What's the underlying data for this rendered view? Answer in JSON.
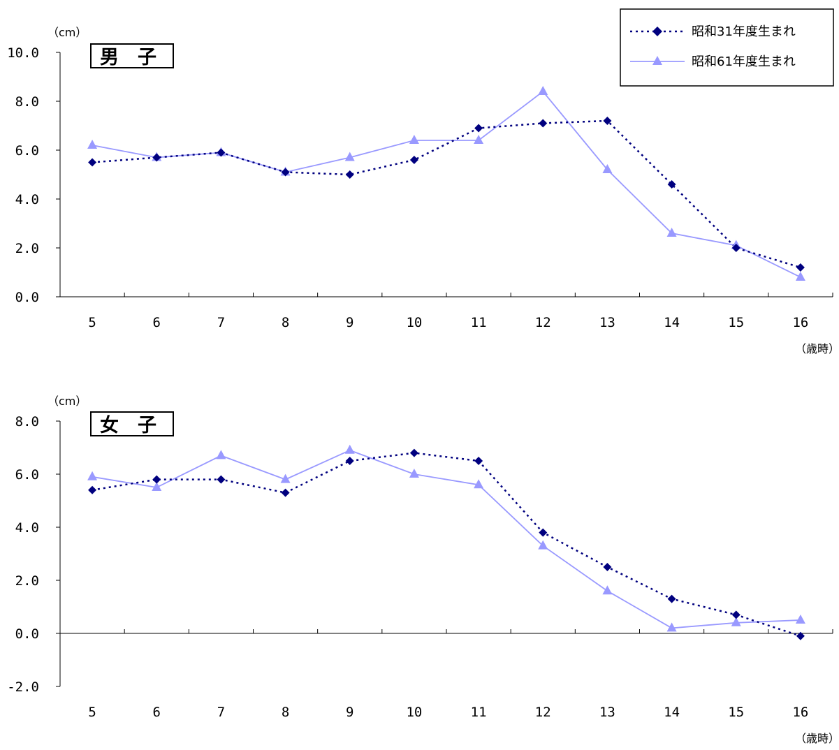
{
  "chart_data": [
    {
      "type": "line",
      "panel_label": "男　子",
      "y_unit": "（cm）",
      "x_unit": "（歳時）",
      "categories": [
        "5",
        "6",
        "7",
        "8",
        "9",
        "10",
        "11",
        "12",
        "13",
        "14",
        "15",
        "16"
      ],
      "ylim": [
        0,
        10
      ],
      "y_ticks": [
        "0.0",
        "2.0",
        "4.0",
        "6.0",
        "8.0",
        "10.0"
      ],
      "series": [
        {
          "name": "昭和31年度生まれ",
          "values": [
            5.5,
            5.7,
            5.9,
            5.1,
            5.0,
            5.6,
            6.9,
            7.1,
            7.2,
            4.6,
            2.0,
            1.2
          ]
        },
        {
          "name": "昭和61年度生まれ",
          "values": [
            6.2,
            5.7,
            5.9,
            5.1,
            5.7,
            6.4,
            6.4,
            8.4,
            5.2,
            2.6,
            2.1,
            0.8
          ]
        }
      ],
      "grid": false,
      "legend": "top-right"
    },
    {
      "type": "line",
      "panel_label": "女　子",
      "y_unit": "（cm）",
      "x_unit": "（歳時）",
      "categories": [
        "5",
        "6",
        "7",
        "8",
        "9",
        "10",
        "11",
        "12",
        "13",
        "14",
        "15",
        "16"
      ],
      "ylim": [
        -2,
        8
      ],
      "y_ticks": [
        "-2.0",
        "0.0",
        "2.0",
        "4.0",
        "6.0",
        "8.0"
      ],
      "series": [
        {
          "name": "昭和31年度生まれ",
          "values": [
            5.4,
            5.8,
            5.8,
            5.3,
            6.5,
            6.8,
            6.5,
            3.8,
            2.5,
            1.3,
            0.7,
            -0.1
          ]
        },
        {
          "name": "昭和61年度生まれ",
          "values": [
            5.9,
            5.5,
            6.7,
            5.8,
            6.9,
            6.0,
            5.6,
            3.3,
            1.6,
            0.2,
            0.4,
            0.5
          ]
        }
      ],
      "grid": false
    }
  ],
  "legend": {
    "items": [
      "昭和31年度生まれ",
      "昭和61年度生まれ"
    ]
  },
  "colors": {
    "series1": "#00007f",
    "series2": "#9999ff",
    "axis": "#000000"
  }
}
